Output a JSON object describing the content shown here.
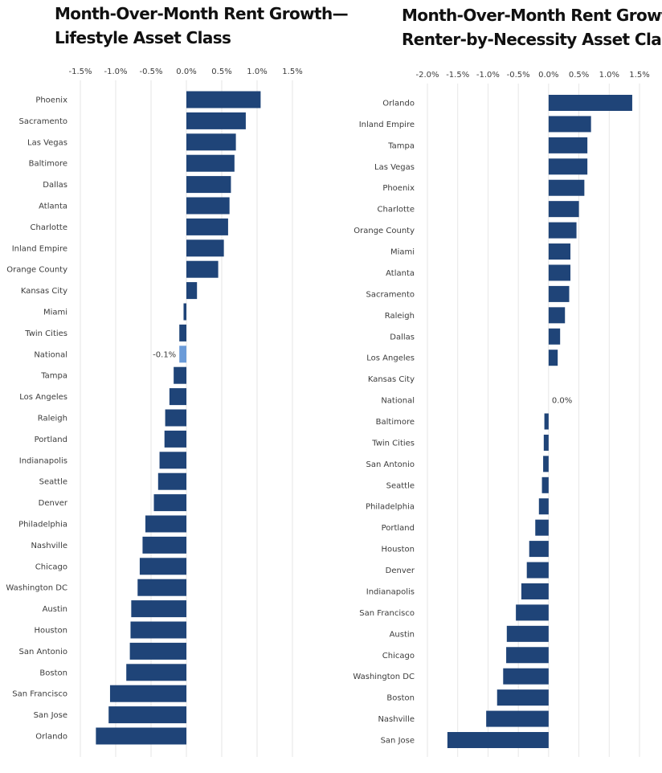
{
  "chart_data": [
    {
      "type": "bar",
      "orientation": "horizontal",
      "title_line1": "Month-Over-Month Rent Growth—",
      "title_line2": "Lifestyle Asset Class",
      "xlim": [
        -1.5,
        1.5
      ],
      "ticks": [
        -1.5,
        -1.0,
        -0.5,
        0.0,
        0.5,
        1.0,
        1.5
      ],
      "tick_labels": [
        "-1.5%",
        "-1.0%",
        "-0.5%",
        "0.0%",
        "0.5%",
        "1.0%",
        "1.5%"
      ],
      "grid": true,
      "bar_color": "#1f4478",
      "highlight_color": "#6b9bd8",
      "highlight_category": "National",
      "categories": [
        "Phoenix",
        "Sacramento",
        "Las Vegas",
        "Baltimore",
        "Dallas",
        "Atlanta",
        "Charlotte",
        "Inland Empire",
        "Orange County",
        "Kansas City",
        "Miami",
        "Twin Cities",
        "National",
        "Tampa",
        "Los Angeles",
        "Raleigh",
        "Portland",
        "Indianapolis",
        "Seattle",
        "Denver",
        "Philadelphia",
        "Nashville",
        "Chicago",
        "Washington DC",
        "Austin",
        "Houston",
        "San Antonio",
        "Boston",
        "San Francisco",
        "San Jose",
        "Orlando"
      ],
      "values": [
        1.05,
        0.84,
        0.7,
        0.68,
        0.63,
        0.61,
        0.59,
        0.53,
        0.45,
        0.15,
        -0.04,
        -0.1,
        -0.1,
        -0.18,
        -0.24,
        -0.3,
        -0.31,
        -0.38,
        -0.4,
        -0.46,
        -0.58,
        -0.62,
        -0.66,
        -0.69,
        -0.78,
        -0.79,
        -0.8,
        -0.85,
        -1.08,
        -1.1,
        -1.28
      ],
      "data_labels": [
        {
          "category": "National",
          "text": "-0.1%"
        }
      ]
    },
    {
      "type": "bar",
      "orientation": "horizontal",
      "title_line1": "Month-Over-Month Rent Growth—",
      "title_line2": "Renter-by-Necessity Asset Class",
      "xlim": [
        -2.0,
        1.5
      ],
      "ticks": [
        -2.0,
        -1.5,
        -1.0,
        -0.5,
        0.0,
        0.5,
        1.0,
        1.5
      ],
      "tick_labels": [
        "-2.0%",
        "-1.5%",
        "-1.0%",
        "-0.5%",
        "0.0%",
        "0.5%",
        "1.0%",
        "1.5%"
      ],
      "grid": true,
      "bar_color": "#1f4478",
      "highlight_color": "#6b9bd8",
      "highlight_category": "National",
      "categories": [
        "Orlando",
        "Inland Empire",
        "Tampa",
        "Las Vegas",
        "Phoenix",
        "Charlotte",
        "Orange County",
        "Miami",
        "Atlanta",
        "Sacramento",
        "Raleigh",
        "Dallas",
        "Los Angeles",
        "Kansas City",
        "National",
        "Baltimore",
        "Twin Cities",
        "San Antonio",
        "Seattle",
        "Philadelphia",
        "Portland",
        "Houston",
        "Denver",
        "Indianapolis",
        "San Francisco",
        "Austin",
        "Chicago",
        "Washington DC",
        "Boston",
        "Nashville",
        "San Jose"
      ],
      "values": [
        1.38,
        0.7,
        0.64,
        0.64,
        0.59,
        0.5,
        0.46,
        0.36,
        0.36,
        0.34,
        0.27,
        0.19,
        0.15,
        0.0,
        0.0,
        -0.07,
        -0.08,
        -0.09,
        -0.11,
        -0.16,
        -0.22,
        -0.32,
        -0.36,
        -0.45,
        -0.54,
        -0.69,
        -0.7,
        -0.75,
        -0.85,
        -1.03,
        -1.67
      ],
      "data_labels": [
        {
          "category": "National",
          "text": "0.0%"
        }
      ]
    }
  ]
}
